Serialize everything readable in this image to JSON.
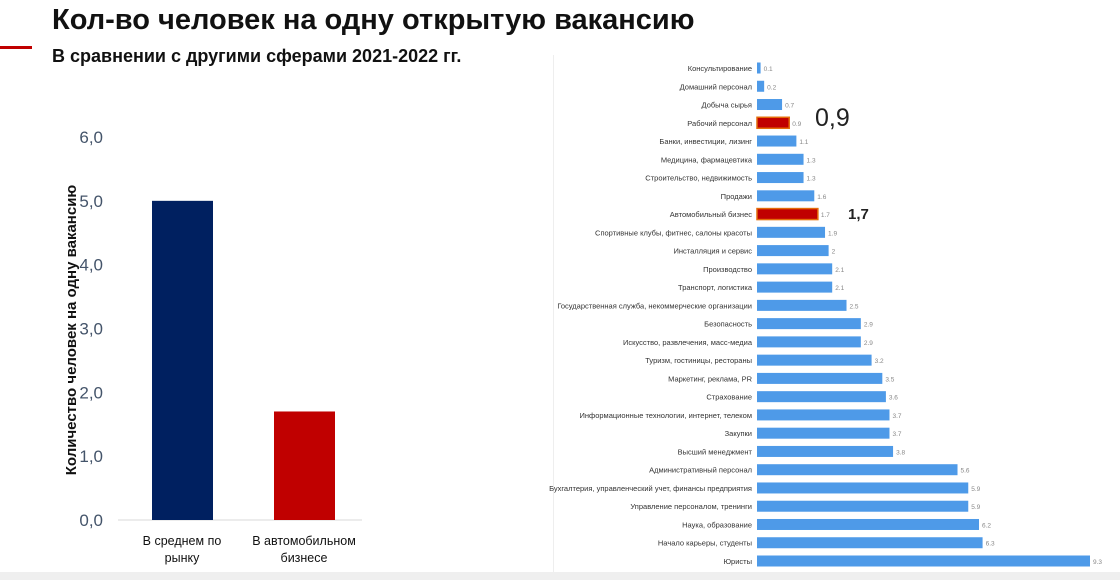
{
  "header": {
    "title": "Кол-во человек на одну открытую вакансию",
    "subtitle": "В сравнении с другими сферами 2021-2022 гг."
  },
  "chart_data": [
    {
      "type": "bar",
      "ylabel": "Количество человек на одну вакансию",
      "categories": [
        "В среднем по рынку",
        "В автомобильном бизнесе"
      ],
      "category_lines": [
        [
          "В среднем по",
          "рынку"
        ],
        [
          "В автомобильном",
          "бизнесе"
        ]
      ],
      "values": [
        5.0,
        1.7
      ],
      "colors": [
        "#002060",
        "#c00000"
      ],
      "ylim": [
        0,
        6
      ],
      "yticks": [
        "0,0",
        "1,0",
        "2,0",
        "3,0",
        "4,0",
        "5,0",
        "6,0"
      ],
      "grid": false
    },
    {
      "type": "bar",
      "orientation": "horizontal",
      "categories": [
        "Консультирование",
        "Домашний персонал",
        "Добыча сырья",
        "Рабочий персонал",
        "Банки, инвестиции, лизинг",
        "Медицина, фармацевтика",
        "Строительство, недвижимость",
        "Продажи",
        "Автомобильный бизнес",
        "Спортивные клубы, фитнес, салоны красоты",
        "Инсталляция и сервис",
        "Производство",
        "Транспорт, логистика",
        "Государственная служба, некоммерческие организации",
        "Безопасность",
        "Искусство, развлечения, масс-медиа",
        "Туризм, гостиницы, рестораны",
        "Маркетинг, реклама, PR",
        "Страхование",
        "Информационные технологии, интернет, телеком",
        "Закупки",
        "Высший менеджмент",
        "Административный персонал",
        "Бухгалтерия, управленческий учет, финансы предприятия",
        "Управление персоналом, тренинги",
        "Наука, образование",
        "Начало карьеры, студенты",
        "Юристы"
      ],
      "values": [
        0.1,
        0.2,
        0.7,
        0.9,
        1.1,
        1.3,
        1.3,
        1.6,
        1.7,
        1.9,
        2,
        2.1,
        2.1,
        2.5,
        2.9,
        2.9,
        3.2,
        3.5,
        3.6,
        3.7,
        3.7,
        3.8,
        5.6,
        5.9,
        5.9,
        6.2,
        6.3,
        9.3
      ],
      "value_labels": [
        "0.1",
        "0.2",
        "0.7",
        "0.9",
        "1.1",
        "1.3",
        "1.3",
        "1.6",
        "1.7",
        "1.9",
        "2",
        "2.1",
        "2.1",
        "2.5",
        "2.9",
        "2.9",
        "3.2",
        "3.5",
        "3.6",
        "3.7",
        "3.7",
        "3.8",
        "5.6",
        "5.9",
        "5.9",
        "6.2",
        "6.3",
        "9.3"
      ],
      "highlighted": [
        3,
        8
      ],
      "annotations": {
        "3": "0,9",
        "8": "1,7"
      },
      "colors": {
        "default": "#4e9ae8",
        "highlight": "#c00000",
        "highlight_border": "#e46c0a"
      },
      "grid": false
    }
  ]
}
